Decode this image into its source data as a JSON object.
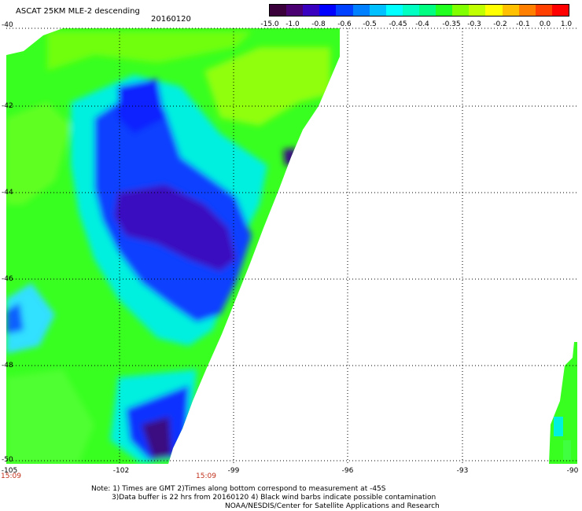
{
  "header": {
    "title": "ASCAT 25KM MLE-2 descending",
    "date": "20160120"
  },
  "colorbar": {
    "colors": [
      "#3a003a",
      "#4a0070",
      "#3a00c0",
      "#0000ff",
      "#0040ff",
      "#0080ff",
      "#00c0ff",
      "#00ffff",
      "#00ffc0",
      "#00ff80",
      "#20ff20",
      "#80ff00",
      "#c0ff00",
      "#ffff00",
      "#ffc000",
      "#ff8000",
      "#ff4000",
      "#ff0000"
    ],
    "ticks": [
      "-15.0",
      "-1.0",
      "-0.8",
      "-0.6",
      "-0.5",
      "-0.45",
      "-0.4",
      "-0.35",
      "-0.3",
      "-0.2",
      "-0.1",
      "0.0",
      "1.0"
    ]
  },
  "axes": {
    "lat_labels": [
      "-40",
      "-42",
      "-44",
      "-46",
      "-48",
      "-50"
    ],
    "lon_labels": [
      "-105",
      "-102",
      "-99",
      "-96",
      "-93",
      "-90"
    ]
  },
  "times": [
    "15:09",
    "15:09"
  ],
  "notes": [
    "Note: 1) Times are GMT 2)Times along bottom correspond to measurement at -45S",
    "3)Data buffer is 22 hrs from 20160120 4) Black wind barbs indicate possible contamination",
    "NOAA/NESDIS/Center for Satellite Applications and Research"
  ],
  "colors": {
    "time_label": "#c0301a"
  }
}
